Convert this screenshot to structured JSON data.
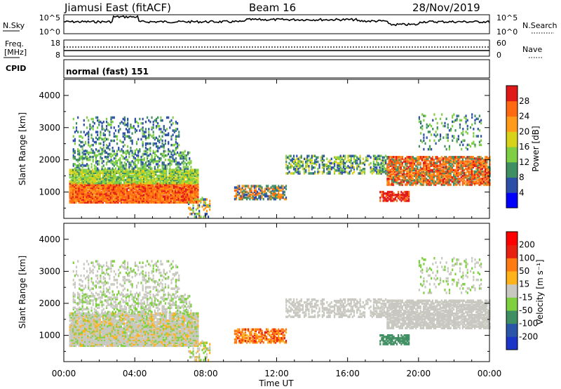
{
  "header": {
    "station": "Jiamusi East (fitACF)",
    "beam": "Beam 16",
    "date": "28/Nov/2019"
  },
  "noise_panel": {
    "left_label": "N.Sky",
    "right_label": "N.Search",
    "left_ticks": [
      "10^5",
      "10^0"
    ],
    "right_ticks": [
      "10^5",
      "10^0"
    ]
  },
  "freq_panel": {
    "left_label_line1": "Freq.",
    "left_label_line2": "[MHz]",
    "right_label": "Nave",
    "left_ticks": [
      "18",
      "8"
    ],
    "right_ticks": [
      "60",
      "0"
    ]
  },
  "cpid": {
    "label": "CPID",
    "value": "normal (fast) 151"
  },
  "chart_data": [
    {
      "type": "heatmap",
      "quantity": "Power",
      "ylabel": "Slant Range [km]",
      "ylim": [
        180,
        4500
      ],
      "yticks": [
        "1000",
        "2000",
        "3000",
        "4000"
      ],
      "colorbar_label": "Power [dB]",
      "colorbar_ticks": [
        "4",
        "8",
        "12",
        "16",
        "20",
        "24",
        "28"
      ],
      "colorbar_colors": [
        "#0000ff",
        "#2c4fa8",
        "#3f8f63",
        "#7fcf45",
        "#d9d21a",
        "#ff9a1a",
        "#ff6a10",
        "#e01818"
      ]
    },
    {
      "type": "heatmap",
      "quantity": "Velocity",
      "ylabel": "Slant Range [km]",
      "ylim": [
        180,
        4500
      ],
      "yticks": [
        "1000",
        "2000",
        "3000",
        "4000"
      ],
      "colorbar_label": "Velocity [m s⁻¹]",
      "colorbar_ticks": [
        "200",
        "100",
        "50",
        "15",
        "-15",
        "-50",
        "-100",
        "-200"
      ],
      "colorbar_colors": [
        "#1a35c8",
        "#2a55a8",
        "#3f8f63",
        "#7fd03f",
        "#c8c8c0",
        "#ffb21a",
        "#ff7a10",
        "#e82010",
        "#ff0000"
      ]
    }
  ],
  "time_axis": {
    "label": "Time UT",
    "ticks": [
      "00:00",
      "04:00",
      "08:00",
      "12:00",
      "16:00",
      "20:00",
      "00:00"
    ],
    "range_hours": [
      0,
      24
    ]
  }
}
